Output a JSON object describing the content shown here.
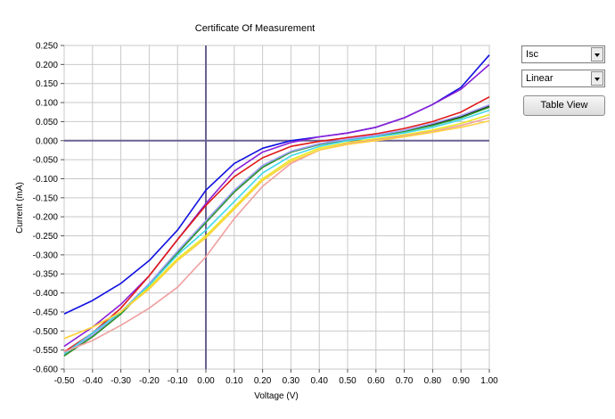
{
  "controls": {
    "measure_select": "Isc",
    "scale_select": "Linear",
    "table_view_button": "Table View"
  },
  "chart_data": {
    "type": "line",
    "title": "Certificate Of Measurement",
    "xlabel": "Voltage (V)",
    "ylabel": "Current (mA)",
    "xlim": [
      -0.5,
      1.0
    ],
    "ylim": [
      -0.6,
      0.25
    ],
    "x_ticks": [
      "-0.50",
      "-0.40",
      "-0.30",
      "-0.20",
      "-0.10",
      "0.00",
      "0.10",
      "0.20",
      "0.30",
      "0.40",
      "0.50",
      "0.60",
      "0.70",
      "0.80",
      "0.90",
      "1.00"
    ],
    "y_ticks": [
      "0.250",
      "0.200",
      "0.150",
      "0.100",
      "0.050",
      "0.000",
      "-0.050",
      "-0.100",
      "-0.150",
      "-0.200",
      "-0.250",
      "-0.300",
      "-0.350",
      "-0.400",
      "-0.450",
      "-0.500",
      "-0.550",
      "-0.600"
    ],
    "grid": true,
    "x": [
      -0.5,
      -0.4,
      -0.3,
      -0.2,
      -0.1,
      0.0,
      0.1,
      0.2,
      0.3,
      0.4,
      0.5,
      0.6,
      0.7,
      0.8,
      0.9,
      1.0
    ],
    "series": [
      {
        "color": "#1010e0",
        "values": [
          -0.455,
          -0.42,
          -0.375,
          -0.315,
          -0.235,
          -0.13,
          -0.06,
          -0.02,
          0.0,
          0.01,
          0.02,
          0.035,
          0.06,
          0.095,
          0.14,
          0.225
        ]
      },
      {
        "color": "#8a20d8",
        "values": [
          -0.54,
          -0.49,
          -0.43,
          -0.355,
          -0.26,
          -0.165,
          -0.08,
          -0.03,
          -0.005,
          0.01,
          0.02,
          0.035,
          0.06,
          0.095,
          0.135,
          0.2
        ]
      },
      {
        "color": "#e01818",
        "values": [
          -0.555,
          -0.505,
          -0.44,
          -0.355,
          -0.26,
          -0.17,
          -0.095,
          -0.045,
          -0.015,
          -0.002,
          0.008,
          0.018,
          0.032,
          0.05,
          0.075,
          0.115
        ]
      },
      {
        "color": "#101010",
        "values": [
          -0.565,
          -0.515,
          -0.455,
          -0.38,
          -0.295,
          -0.215,
          -0.135,
          -0.07,
          -0.03,
          -0.01,
          0.003,
          0.012,
          0.025,
          0.042,
          0.062,
          0.09
        ]
      },
      {
        "color": "#2a9a2a",
        "values": [
          -0.565,
          -0.515,
          -0.455,
          -0.38,
          -0.295,
          -0.215,
          -0.135,
          -0.07,
          -0.03,
          -0.01,
          0.003,
          0.012,
          0.024,
          0.04,
          0.06,
          0.088
        ]
      },
      {
        "color": "#a0a0ff",
        "values": [
          -0.56,
          -0.51,
          -0.45,
          -0.375,
          -0.29,
          -0.21,
          -0.13,
          -0.065,
          -0.028,
          -0.008,
          0.004,
          0.014,
          0.027,
          0.045,
          0.066,
          0.094
        ]
      },
      {
        "color": "#40d8e8",
        "values": [
          -0.56,
          -0.505,
          -0.45,
          -0.38,
          -0.3,
          -0.235,
          -0.16,
          -0.085,
          -0.04,
          -0.015,
          0.0,
          0.01,
          0.02,
          0.035,
          0.055,
          0.08
        ]
      },
      {
        "color": "#e8e820",
        "values": [
          -0.52,
          -0.49,
          -0.45,
          -0.385,
          -0.31,
          -0.25,
          -0.175,
          -0.1,
          -0.05,
          -0.02,
          -0.005,
          0.005,
          0.015,
          0.028,
          0.045,
          0.068
        ]
      },
      {
        "color": "#f0a0a0",
        "values": [
          -0.555,
          -0.525,
          -0.485,
          -0.44,
          -0.385,
          -0.305,
          -0.205,
          -0.12,
          -0.06,
          -0.025,
          -0.008,
          0.002,
          0.012,
          0.024,
          0.04,
          0.06
        ]
      },
      {
        "color": "#ffd040",
        "values": [
          -0.52,
          -0.49,
          -0.45,
          -0.39,
          -0.315,
          -0.255,
          -0.18,
          -0.105,
          -0.055,
          -0.025,
          -0.01,
          0.0,
          0.01,
          0.022,
          0.035,
          0.052
        ]
      }
    ]
  }
}
